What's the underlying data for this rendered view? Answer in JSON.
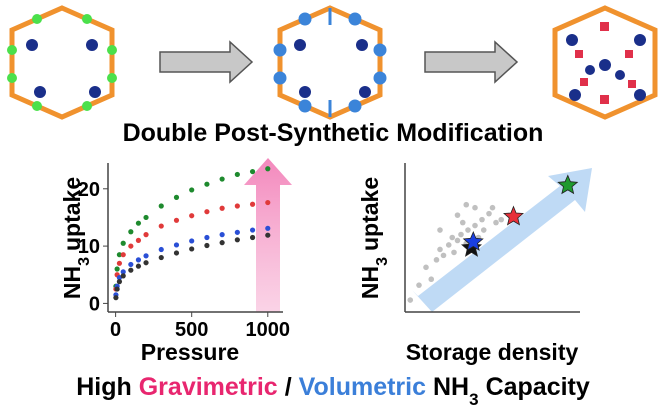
{
  "heading": "Double Post-Synthetic Modification",
  "caption": {
    "parts": [
      "High",
      "Gravimetric",
      "/",
      "Volumetric",
      "NH",
      "3",
      "Capacity"
    ],
    "colors": [
      "#000000",
      "#e8266f",
      "#000000",
      "#3b7fd9",
      "#000000",
      "#000000",
      "#000000"
    ]
  },
  "chart_data": [
    {
      "type": "scatter",
      "xlabel": "Pressure",
      "ylabel": [
        "NH",
        "3",
        "uptake"
      ],
      "xlim": [
        -50,
        1100
      ],
      "ylim": [
        -1.5,
        24.5
      ],
      "xticks": [
        0,
        500,
        1000
      ],
      "yticks": [
        0,
        10,
        20
      ],
      "x": [
        2,
        10,
        25,
        50,
        100,
        150,
        200,
        300,
        400,
        500,
        600,
        700,
        800,
        900,
        1000
      ],
      "series": [
        {
          "color": "#1e8a2e",
          "values": [
            3,
            6,
            8.5,
            10.5,
            12.5,
            14,
            15,
            17,
            18.5,
            19.8,
            20.8,
            21.7,
            22.5,
            23,
            23.5
          ]
        },
        {
          "color": "#e03a3a",
          "values": [
            2.5,
            5,
            7,
            8.5,
            10,
            11,
            12,
            13.5,
            14.5,
            15.3,
            16,
            16.6,
            17,
            17.3,
            17.6
          ]
        },
        {
          "color": "#2a4fd6",
          "values": [
            1.5,
            3,
            4.5,
            5.5,
            6.8,
            7.6,
            8.3,
            9.4,
            10.2,
            10.9,
            11.5,
            12,
            12.4,
            12.8,
            13.1
          ]
        },
        {
          "color": "#333333",
          "values": [
            1,
            2.5,
            3.8,
            4.8,
            5.8,
            6.5,
            7.1,
            8,
            8.8,
            9.5,
            10.1,
            10.6,
            11.1,
            11.5,
            11.9
          ]
        }
      ]
    },
    {
      "type": "scatter",
      "xlabel": "Storage density",
      "ylabel": [
        "NH",
        "3",
        "uptake"
      ],
      "xlim": [
        0,
        100
      ],
      "ylim": [
        0,
        100
      ],
      "series": [
        {
          "color": "#b0b0b0",
          "marker": "circle",
          "x": [
            3,
            8,
            12,
            15,
            18,
            20,
            22,
            25,
            27,
            28,
            30,
            32,
            33,
            35,
            36,
            37,
            40,
            42,
            44,
            45,
            48,
            50,
            52,
            35,
            30,
            55,
            20,
            40
          ],
          "values": [
            8,
            18,
            30,
            22,
            35,
            42,
            38,
            45,
            50,
            40,
            48,
            52,
            60,
            46,
            55,
            42,
            58,
            50,
            62,
            55,
            66,
            70,
            60,
            72,
            65,
            62,
            55,
            70
          ]
        },
        {
          "color": "#111111",
          "marker": "star",
          "x": [
            38
          ],
          "values": [
            43
          ]
        },
        {
          "color": "#1a3fe0",
          "marker": "star",
          "x": [
            39
          ],
          "values": [
            47
          ]
        },
        {
          "color": "#e8303a",
          "marker": "star",
          "x": [
            62
          ],
          "values": [
            64
          ]
        },
        {
          "color": "#1e9a2e",
          "marker": "star",
          "x": [
            93
          ],
          "values": [
            85
          ]
        }
      ]
    }
  ]
}
